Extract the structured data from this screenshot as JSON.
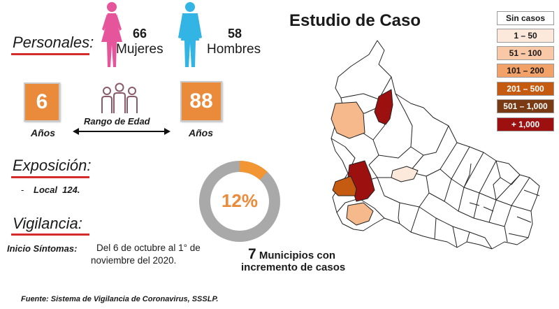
{
  "title": "Estudio de Caso",
  "personales": {
    "label": "Personales:",
    "female": {
      "count": "66",
      "label": "Mujeres",
      "color": "#e6549c"
    },
    "male": {
      "count": "58",
      "label": "Hombres",
      "color": "#32b4e4"
    }
  },
  "edad": {
    "min": "6",
    "max": "88",
    "unit_left": "Años",
    "unit_right": "Años",
    "range_label": "Rango de Edad",
    "box_color": "#ea8a3b"
  },
  "exposicion": {
    "label": "Exposición:",
    "items": [
      {
        "bullet": "-",
        "text": "Local  124."
      }
    ]
  },
  "vigilancia": {
    "label": "Vigilancia:",
    "inicio_label": "Inicio Síntomas:",
    "inicio_text_1": "Del 6 de octubre al 1° de",
    "inicio_text_2": "noviembre del 2020."
  },
  "donut": {
    "percent_label": "12%",
    "percent": 12,
    "fill_color": "#f29533",
    "track_color": "#a9a9a9"
  },
  "municipios": {
    "count": "7",
    "line1": "Municipios con",
    "line2": "incremento de casos"
  },
  "fuente": "Fuente: Sistema de Vigilancia de Coronavirus, SSSLP.",
  "legend": [
    {
      "label": "Sin casos",
      "color": "#ffffff",
      "text_color": "#1a1a1a"
    },
    {
      "label": "1 – 50",
      "color": "#fde9dc",
      "text_color": "#1a1a1a"
    },
    {
      "label": "51 – 100",
      "color": "#f9c8a6",
      "text_color": "#1a1a1a"
    },
    {
      "label": "101 – 200",
      "color": "#f2a268",
      "text_color": "#1a1a1a"
    },
    {
      "label": "201 – 500",
      "color": "#c55a11",
      "text_color": "#ffffff"
    },
    {
      "label": "501 – 1,000",
      "color": "#7a3a14",
      "text_color": "#ffffff"
    },
    {
      "label": "+ 1,000",
      "color": "#9c1010",
      "text_color": "#ffffff"
    }
  ]
}
